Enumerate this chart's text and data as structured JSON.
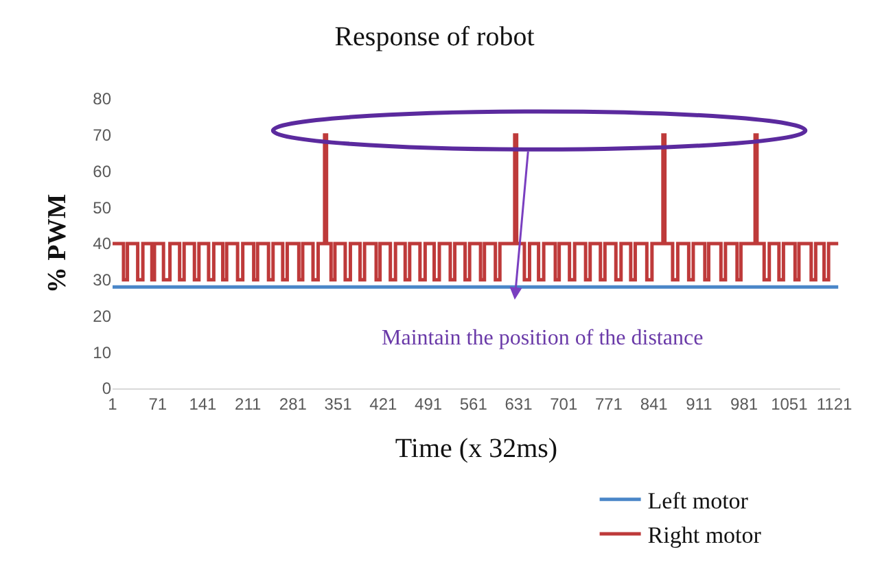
{
  "chart_data": {
    "type": "line",
    "title": "Response of robot",
    "xlabel": "Time (x 32ms)",
    "ylabel": "% PWM",
    "xlim": [
      1,
      1130
    ],
    "xticks": [
      1,
      71,
      141,
      211,
      281,
      351,
      421,
      491,
      561,
      631,
      701,
      771,
      841,
      911,
      981,
      1051,
      1121
    ],
    "ylim": [
      0,
      80
    ],
    "yticks": [
      0,
      10,
      20,
      30,
      40,
      50,
      60,
      70,
      80
    ],
    "grid": false,
    "legend": "bottom right",
    "annotations": [
      "Maintain the position of the distance"
    ],
    "series": [
      {
        "name": "Left motor",
        "color": "#4a86c8",
        "x": [
          1,
          1127
        ],
        "values": [
          28,
          28
        ]
      },
      {
        "name": "Right motor",
        "color": "#be3a3a",
        "type": "step",
        "x": [
          1,
          18,
          24,
          40,
          48,
          62,
          66,
          80,
          90,
          105,
          112,
          128,
          135,
          150,
          158,
          172,
          178,
          195,
          203,
          220,
          226,
          243,
          250,
          265,
          272,
          290,
          296,
          312,
          320,
          330,
          333,
          340,
          346,
          362,
          370,
          385,
          392,
          410,
          416,
          432,
          440,
          455,
          462,
          478,
          486,
          500,
          508,
          525,
          532,
          548,
          555,
          572,
          578,
          595,
          602,
          625,
          628,
          640,
          648,
          662,
          670,
          688,
          694,
          710,
          718,
          735,
          742,
          758,
          765,
          782,
          790,
          805,
          812,
          830,
          838,
          855,
          858,
          870,
          878,
          895,
          902,
          920,
          926,
          945,
          952,
          970,
          976,
          998,
          1001,
          1012,
          1020,
          1035,
          1042,
          1060,
          1066,
          1085,
          1092,
          1105,
          1112,
          1127
        ],
        "values": [
          40,
          30,
          40,
          30,
          40,
          30,
          40,
          30,
          40,
          30,
          40,
          30,
          40,
          30,
          40,
          30,
          40,
          30,
          40,
          30,
          40,
          30,
          40,
          30,
          40,
          30,
          40,
          30,
          40,
          70,
          40,
          30,
          40,
          30,
          40,
          30,
          40,
          30,
          40,
          30,
          40,
          30,
          40,
          30,
          40,
          30,
          40,
          30,
          40,
          30,
          40,
          30,
          40,
          30,
          40,
          70,
          40,
          30,
          40,
          30,
          40,
          30,
          40,
          30,
          40,
          30,
          40,
          30,
          40,
          30,
          40,
          30,
          40,
          30,
          40,
          70,
          40,
          30,
          40,
          30,
          40,
          30,
          40,
          30,
          40,
          30,
          40,
          70,
          40,
          30,
          40,
          30,
          40,
          30,
          40,
          30,
          40,
          30,
          40,
          40
        ]
      }
    ]
  }
}
